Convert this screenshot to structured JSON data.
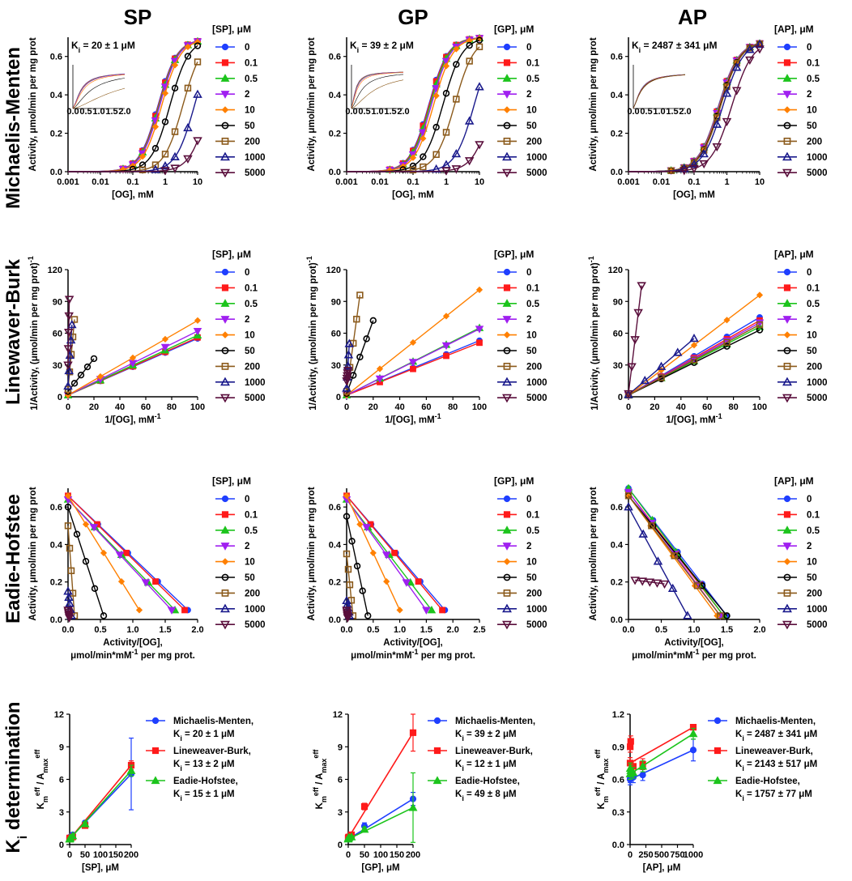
{
  "column_titles": [
    "SP",
    "GP",
    "AP"
  ],
  "row_titles": [
    "Michaelis-Menten",
    "Linewaver-Burk",
    "Eadie-Hofstee",
    "Ki determination"
  ],
  "series_colors": [
    "#1f3fff",
    "#ff1a1a",
    "#1cc41c",
    "#a020f0",
    "#ff8000",
    "#000000",
    "#8b5a1b",
    "#1a1a8c",
    "#5a0f3c"
  ],
  "series_markers": [
    "circle",
    "square",
    "triangle-up",
    "triangle-down",
    "diamond",
    "circle-open",
    "square-open",
    "triangle-up-open",
    "triangle-down-open"
  ],
  "concentration_labels": [
    "0",
    "0.1",
    "0.5",
    "2",
    "10",
    "50",
    "200",
    "1000",
    "5000"
  ],
  "legend_titles": [
    "[SP], μM",
    "[GP], μM",
    "[AP], μM"
  ],
  "ki_annotations": [
    "Ki = 20 ± 1 μM",
    "Ki = 39 ± 2 μM",
    "Ki = 2487 ± 341 μM"
  ],
  "ki_legend": {
    "colors": [
      "#1f3fff",
      "#ff1a1a",
      "#1cc41c"
    ],
    "SP": [
      "Michaelis-Menten,|Ki = 20 ± 1 μM",
      "Lineweaver-Burk,|Ki = 13 ± 2 μM",
      "Eadie-Hofstee,|Ki = 15 ± 1 μM"
    ],
    "GP": [
      "Michaelis-Menten,|Ki = 39 ± 2 μM",
      "Lineweaver-Burk,|Ki = 12 ± 1 μM",
      "Eadie-Hofstee,|Ki = 49 ± 8 μM"
    ],
    "AP": [
      "Michaelis-Menten,|Ki = 2487 ± 341 μM",
      "Lineweaver-Burk,|Ki = 2143 ± 517 μM",
      "Eadie-Hofstee,|Ki = 1757 ± 77 μM"
    ]
  },
  "chart_data": [
    {
      "id": "mm-SP",
      "type": "scatter",
      "xscale": "log",
      "xlabel": "[OG], mM",
      "ylabel": "Activity, μmol/min per mg prot",
      "xticks": [
        "0.001",
        "0.01",
        "0.1",
        "1",
        "10"
      ],
      "xlim": [
        0.001,
        10
      ],
      "ylim": [
        0,
        0.7
      ],
      "yticks": [
        "0.0",
        "0.2",
        "0.4",
        "0.6"
      ],
      "model": "hill",
      "vmax": 0.69,
      "hill_n": 1.5,
      "x": [
        0.01,
        0.02,
        0.05,
        0.1,
        0.2,
        0.5,
        1,
        2,
        5,
        10
      ],
      "km": [
        0.6,
        0.62,
        0.65,
        0.68,
        0.78,
        1.4,
        3.5,
        8,
        22
      ],
      "inset": true
    },
    {
      "id": "mm-GP",
      "type": "scatter",
      "xscale": "log",
      "xlabel": "[OG], mM",
      "ylabel": "Activity, μmol/min per mg prot",
      "xticks": [
        "0.001",
        "0.01",
        "0.1",
        "1",
        "10"
      ],
      "xlim": [
        0.001,
        10
      ],
      "ylim": [
        0,
        0.7
      ],
      "yticks": [
        "0.0",
        "0.2",
        "0.4",
        "0.6"
      ],
      "model": "hill",
      "vmax": 0.7,
      "hill_n": 1.5,
      "x": [
        0.02,
        0.05,
        0.1,
        0.2,
        0.5,
        1,
        2,
        5,
        10
      ],
      "km": [
        0.3,
        0.31,
        0.33,
        0.36,
        0.42,
        0.8,
        1.8,
        7,
        25
      ],
      "inset": true
    },
    {
      "id": "mm-AP",
      "type": "scatter",
      "xscale": "log",
      "xlabel": "[OG], mM",
      "ylabel": "Activity, μmol/min per mg prot",
      "xticks": [
        "0.001",
        "0.01",
        "0.1",
        "1",
        "10"
      ],
      "xlim": [
        0.001,
        10
      ],
      "ylim": [
        0,
        0.7
      ],
      "yticks": [
        "0.0",
        "0.2",
        "0.4",
        "0.6"
      ],
      "model": "hill",
      "vmax": 0.68,
      "hill_n": 1.4,
      "x": [
        0.01,
        0.02,
        0.05,
        0.1,
        0.2,
        0.5,
        1,
        2,
        5,
        10
      ],
      "km": [
        0.55,
        0.56,
        0.57,
        0.58,
        0.6,
        0.62,
        0.64,
        0.75,
        1.4
      ],
      "inset": true
    },
    {
      "id": "lb-SP",
      "type": "scatter",
      "xlabel": "1/[OG], mM-1",
      "ylabel": "1/Activity, (μmol/min per mg prot)-1",
      "xlim": [
        0,
        100
      ],
      "ylim": [
        0,
        120
      ],
      "xticks": [
        "0",
        "20",
        "40",
        "60",
        "80",
        "100"
      ],
      "yticks": [
        "0",
        "30",
        "60",
        "90",
        "120"
      ],
      "lines": [
        [
          0,
          1.5,
          100,
          55
        ],
        [
          0,
          1.5,
          100,
          56
        ],
        [
          0,
          1.5,
          100,
          58
        ],
        [
          0,
          1.5,
          100,
          62
        ],
        [
          0,
          1.5,
          100,
          72
        ],
        [
          0,
          5,
          20,
          36
        ],
        [
          0,
          7,
          5,
          73
        ],
        [
          0,
          10,
          3,
          68
        ],
        [
          0,
          30,
          1,
          92
        ]
      ]
    },
    {
      "id": "lb-GP",
      "type": "scatter",
      "xlabel": "1/[OG], mM-1",
      "ylabel": "1/Activity, (μmol/min per mg prot)-1",
      "xlim": [
        0,
        100
      ],
      "ylim": [
        0,
        120
      ],
      "xticks": [
        "0",
        "20",
        "40",
        "60",
        "80",
        "100"
      ],
      "yticks": [
        "0",
        "30",
        "60",
        "90",
        "120"
      ],
      "lines": [
        [
          0,
          1.5,
          100,
          53
        ],
        [
          0,
          1.5,
          100,
          51
        ],
        [
          0,
          1.5,
          100,
          65
        ],
        [
          0,
          1.5,
          100,
          64
        ],
        [
          0,
          1.5,
          100,
          101
        ],
        [
          0,
          3,
          20,
          72
        ],
        [
          0,
          5,
          10,
          96
        ],
        [
          0,
          8,
          2,
          50
        ],
        [
          0,
          15,
          1,
          25
        ]
      ]
    },
    {
      "id": "lb-AP",
      "type": "scatter",
      "xlabel": "1/[OG], mM-1",
      "ylabel": "1/Activity, (μmol/min per mg prot)-1",
      "xlim": [
        0,
        100
      ],
      "ylim": [
        0,
        120
      ],
      "xticks": [
        "0",
        "20",
        "40",
        "60",
        "80",
        "100"
      ],
      "yticks": [
        "0",
        "30",
        "60",
        "90",
        "120"
      ],
      "lines": [
        [
          0,
          1.5,
          100,
          75
        ],
        [
          0,
          1.5,
          100,
          72
        ],
        [
          0,
          1.5,
          100,
          66
        ],
        [
          0,
          1.5,
          100,
          70
        ],
        [
          0,
          1.5,
          100,
          96
        ],
        [
          0,
          1.5,
          100,
          63
        ],
        [
          0,
          1.5,
          100,
          68
        ],
        [
          0,
          2,
          50,
          55
        ],
        [
          0,
          3,
          10,
          105
        ]
      ]
    },
    {
      "id": "eh-SP",
      "type": "scatter",
      "xlabel": "Activity/[OG],|μmol/min*mM-1 per mg prot.",
      "ylabel": "Activity, μmol/min per mg prot",
      "xlim": [
        0,
        2.0
      ],
      "ylim": [
        0,
        0.7
      ],
      "xticks": [
        "0.0",
        "0.5",
        "1.0",
        "1.5",
        "2.0"
      ],
      "yticks": [
        "0.0",
        "0.2",
        "0.4",
        "0.6"
      ],
      "lines": [
        [
          0,
          0.66,
          1.85,
          0.05
        ],
        [
          0,
          0.66,
          1.8,
          0.05
        ],
        [
          0,
          0.64,
          1.65,
          0.05
        ],
        [
          0,
          0.64,
          1.6,
          0.05
        ],
        [
          0,
          0.66,
          1.1,
          0.05
        ],
        [
          0,
          0.6,
          0.55,
          0.02
        ],
        [
          0,
          0.5,
          0.1,
          0.02
        ],
        [
          0,
          0.15,
          0.05,
          0.02
        ],
        [
          0,
          0.05,
          0.02,
          0.01
        ]
      ]
    },
    {
      "id": "eh-GP",
      "type": "scatter",
      "xlabel": "Activity/[OG],|μmol/min*mM-1 per mg prot.",
      "ylabel": "Activity, μmol/min per mg prot",
      "xlim": [
        0,
        2.5
      ],
      "ylim": [
        0,
        0.7
      ],
      "xticks": [
        "0.0",
        "0.5",
        "1.0",
        "1.5",
        "2.0",
        "2.5"
      ],
      "yticks": [
        "0.0",
        "0.2",
        "0.4",
        "0.6"
      ],
      "lines": [
        [
          0,
          0.66,
          1.85,
          0.05
        ],
        [
          0,
          0.66,
          1.8,
          0.05
        ],
        [
          0,
          0.64,
          1.6,
          0.05
        ],
        [
          0,
          0.64,
          1.5,
          0.05
        ],
        [
          0,
          0.66,
          1.0,
          0.05
        ],
        [
          0,
          0.55,
          0.4,
          0.02
        ],
        [
          0,
          0.35,
          0.12,
          0.02
        ],
        [
          0,
          0.1,
          0.05,
          0.02
        ],
        [
          0,
          0.05,
          0.02,
          0.01
        ]
      ]
    },
    {
      "id": "eh-AP",
      "type": "scatter",
      "xlabel": "Activity/[OG],|μmol/min*mM-1 per mg prot.",
      "ylabel": "Activity, μmol/min per mg prot",
      "xlim": [
        0,
        2.0
      ],
      "ylim": [
        0,
        0.7
      ],
      "xticks": [
        "0.0",
        "0.5",
        "1.0",
        "1.5",
        "2.0"
      ],
      "yticks": [
        "0.0",
        "0.2",
        "0.4",
        "0.6"
      ],
      "lines": [
        [
          0,
          0.7,
          1.5,
          0.02
        ],
        [
          0,
          0.68,
          1.45,
          0.02
        ],
        [
          0,
          0.7,
          1.45,
          0.02
        ],
        [
          0,
          0.68,
          1.4,
          0.02
        ],
        [
          0,
          0.66,
          1.35,
          0.02
        ],
        [
          0,
          0.66,
          1.5,
          0.02
        ],
        [
          0,
          0.66,
          1.4,
          0.02
        ],
        [
          0,
          0.6,
          0.9,
          0.02
        ],
        [
          0.1,
          0.21,
          0.55,
          0.19
        ]
      ]
    },
    {
      "id": "ki-SP",
      "type": "line",
      "xlabel": "[SP], μM",
      "ylabel": "Km eff / Amax eff",
      "xlim": [
        0,
        200
      ],
      "ylim": [
        0,
        12
      ],
      "xticks": [
        "0",
        "50",
        "100",
        "150",
        "200"
      ],
      "yticks": [
        "0",
        "3",
        "6",
        "9",
        "12"
      ],
      "series": [
        {
          "name": "Michaelis-Menten",
          "x": [
            0,
            0.1,
            0.5,
            2,
            10,
            50,
            200
          ],
          "y": [
            0.55,
            0.6,
            0.65,
            0.7,
            0.9,
            2.0,
            6.5
          ],
          "err": [
            0.05,
            0.05,
            0.05,
            0.05,
            0.1,
            0.2,
            3.3
          ]
        },
        {
          "name": "Lineweaver-Burk",
          "x": [
            0,
            0.1,
            0.5,
            2,
            10,
            50,
            200
          ],
          "y": [
            0.5,
            0.55,
            0.6,
            0.6,
            0.7,
            1.75,
            7.3
          ],
          "err": [
            0.05,
            0.05,
            0.05,
            0.05,
            0.1,
            0.1,
            0.4
          ]
        },
        {
          "name": "Eadie-Hofstee",
          "x": [
            0,
            0.1,
            0.5,
            2,
            10,
            50,
            200
          ],
          "y": [
            0.5,
            0.5,
            0.55,
            0.6,
            0.8,
            1.9,
            6.8
          ],
          "err": [
            0.05,
            0.05,
            0.05,
            0.05,
            0.1,
            0.2,
            0.5
          ]
        }
      ]
    },
    {
      "id": "ki-GP",
      "type": "line",
      "xlabel": "[GP], μM",
      "ylabel": "Km eff / Amax eff",
      "xlim": [
        0,
        200
      ],
      "ylim": [
        0,
        12
      ],
      "xticks": [
        "0",
        "50",
        "100",
        "150",
        "200"
      ],
      "yticks": [
        "0",
        "3",
        "6",
        "9",
        "12"
      ],
      "series": [
        {
          "name": "Michaelis-Menten",
          "x": [
            0,
            0.1,
            0.5,
            2,
            10,
            50,
            200
          ],
          "y": [
            0.5,
            0.55,
            0.6,
            0.65,
            0.8,
            1.7,
            4.2
          ],
          "err": [
            0.05,
            0.05,
            0.05,
            0.05,
            0.1,
            0.3,
            0.6
          ]
        },
        {
          "name": "Lineweaver-Burk",
          "x": [
            0,
            0.1,
            0.5,
            2,
            10,
            50,
            200
          ],
          "y": [
            0.6,
            0.6,
            0.65,
            0.7,
            0.9,
            3.5,
            10.3
          ],
          "err": [
            0.05,
            0.05,
            0.05,
            0.05,
            0.1,
            0.3,
            1.7
          ]
        },
        {
          "name": "Eadie-Hofstee",
          "x": [
            0,
            0.1,
            0.5,
            2,
            10,
            50,
            200
          ],
          "y": [
            0.5,
            0.55,
            0.6,
            0.65,
            0.7,
            1.4,
            3.4
          ],
          "err": [
            0.05,
            0.05,
            0.05,
            0.05,
            0.1,
            0.2,
            3.2
          ]
        }
      ]
    },
    {
      "id": "ki-AP",
      "type": "line",
      "xlabel": "[AP], μM",
      "ylabel": "Km eff / Amax eff",
      "xlim": [
        0,
        1000
      ],
      "ylim": [
        0,
        1.2
      ],
      "xticks": [
        "0",
        "250",
        "500",
        "750",
        "1000"
      ],
      "yticks": [
        "0.0",
        "0.3",
        "0.6",
        "0.9",
        "1.2"
      ],
      "series": [
        {
          "name": "Michaelis-Menten",
          "x": [
            0,
            2,
            10,
            50,
            200,
            1000
          ],
          "y": [
            0.6,
            0.62,
            0.64,
            0.62,
            0.64,
            0.87
          ],
          "err": [
            0.05,
            0.05,
            0.05,
            0.05,
            0.05,
            0.1
          ]
        },
        {
          "name": "Lineweaver-Burk",
          "x": [
            0,
            2,
            10,
            50,
            200,
            1000
          ],
          "y": [
            0.75,
            0.9,
            0.95,
            0.72,
            0.74,
            1.08
          ],
          "err": [
            0.05,
            0.05,
            0.05,
            0.05,
            0.05,
            0.02
          ]
        },
        {
          "name": "Eadie-Hofstee",
          "x": [
            0,
            2,
            10,
            50,
            200,
            1000
          ],
          "y": [
            0.65,
            0.7,
            0.68,
            0.66,
            0.72,
            1.02
          ],
          "err": [
            0.05,
            0.05,
            0.05,
            0.05,
            0.05,
            0.05
          ]
        }
      ]
    }
  ]
}
